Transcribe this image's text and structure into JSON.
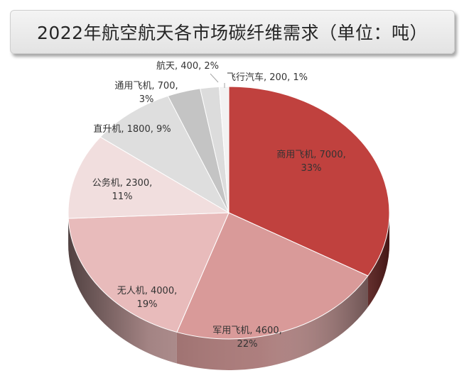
{
  "chart_data": {
    "type": "pie",
    "title": "2022年航空航天各市场碳纤维需求（单位：吨）",
    "slices": [
      {
        "label": "商用飞机",
        "value": 7000,
        "percent": "33%",
        "color": "#c0413e"
      },
      {
        "label": "军用飞机",
        "value": 4600,
        "percent": "22%",
        "color": "#d99a99"
      },
      {
        "label": "无人机",
        "value": 4000,
        "percent": "19%",
        "color": "#e8bbbb"
      },
      {
        "label": "公务机",
        "value": 2300,
        "percent": "11%",
        "color": "#f1dede"
      },
      {
        "label": "直升机",
        "value": 1800,
        "percent": "9%",
        "color": "#dedede"
      },
      {
        "label": "通用飞机",
        "value": 700,
        "percent": "3%",
        "color": "#c4c4c4"
      },
      {
        "label": "航天",
        "value": 400,
        "percent": "2%",
        "color": "#dcdcdc"
      },
      {
        "label": "飞行汽车",
        "value": 200,
        "percent": "1%",
        "color": "#f2f2f2"
      }
    ],
    "labels": [
      {
        "line1": "商用飞机, 7000,",
        "line2": "33%"
      },
      {
        "line1": "军用飞机, 4600,",
        "line2": "22%"
      },
      {
        "line1": "无人机, 4000,",
        "line2": "19%"
      },
      {
        "line1": "公务机, 2300,",
        "line2": "11%"
      },
      {
        "line1": "直升机, 1800, 9%",
        "line2": ""
      },
      {
        "line1": "通用飞机, 700,",
        "line2": "3%"
      },
      {
        "line1": "航天, 400, 2%",
        "line2": ""
      },
      {
        "line1": "飞行汽车, 200, 1%",
        "line2": ""
      }
    ]
  }
}
